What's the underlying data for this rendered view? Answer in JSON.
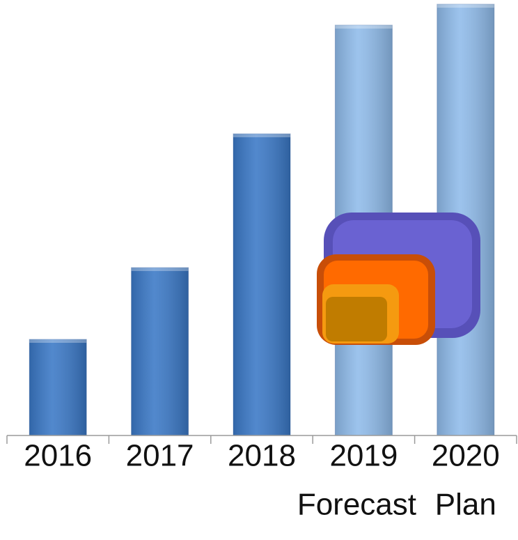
{
  "chart_data": {
    "type": "bar",
    "categories": [
      "2016",
      "2017",
      "2018",
      "2019",
      "2020"
    ],
    "category_notes": [
      null,
      null,
      null,
      "Forecast",
      "Plan"
    ],
    "values": [
      138,
      241,
      433,
      589,
      619
    ],
    "colors": [
      "#3a78c6",
      "#3a78c6",
      "#3a78c6",
      "#8fbbea",
      "#8fbbea"
    ],
    "ylim": [
      0,
      625
    ]
  }
}
